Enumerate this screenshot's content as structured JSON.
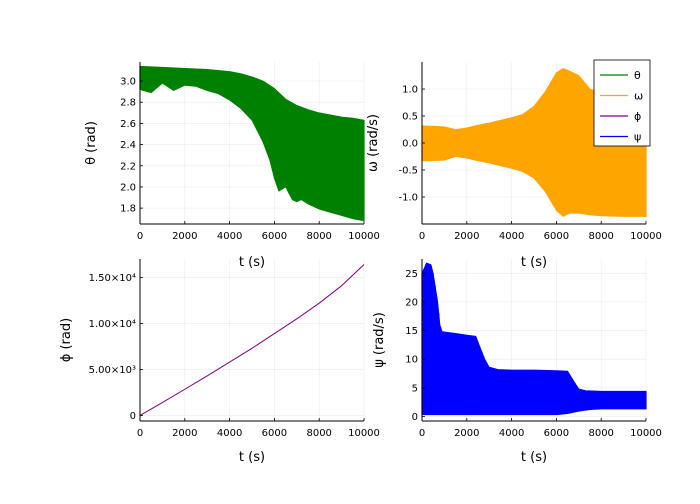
{
  "chart_data": [
    {
      "id": "theta",
      "type": "area",
      "xlabel": "t (s)",
      "ylabel": "θ (rad)",
      "xlim": [
        0,
        10000
      ],
      "ylim": [
        1.65,
        3.18
      ],
      "xticks": [
        0,
        2000,
        4000,
        6000,
        8000,
        10000
      ],
      "xtick_labels": [
        "0",
        "2000",
        "4000",
        "6000",
        "8000",
        "10000"
      ],
      "yticks": [
        1.8,
        2.0,
        2.2,
        2.4,
        2.6,
        2.8,
        3.0
      ],
      "ytick_labels": [
        "1.8",
        "2.0",
        "2.2",
        "2.4",
        "2.6",
        "2.8",
        "3.0"
      ],
      "grid": true,
      "color": "#008000",
      "series": [
        {
          "upper": [
            [
              0,
              3.14
            ],
            [
              1000,
              3.13
            ],
            [
              2000,
              3.12
            ],
            [
              3000,
              3.11
            ],
            [
              4000,
              3.09
            ],
            [
              4500,
              3.07
            ],
            [
              5000,
              3.04
            ],
            [
              5500,
              3.0
            ],
            [
              6000,
              2.93
            ],
            [
              6500,
              2.83
            ],
            [
              7000,
              2.77
            ],
            [
              7500,
              2.73
            ],
            [
              8000,
              2.7
            ],
            [
              8500,
              2.68
            ],
            [
              9000,
              2.66
            ],
            [
              9500,
              2.65
            ],
            [
              10000,
              2.63
            ]
          ],
          "lower": [
            [
              0,
              2.92
            ],
            [
              500,
              2.89
            ],
            [
              1000,
              2.98
            ],
            [
              1500,
              2.91
            ],
            [
              2000,
              2.96
            ],
            [
              2500,
              2.95
            ],
            [
              3000,
              2.91
            ],
            [
              3500,
              2.88
            ],
            [
              4000,
              2.82
            ],
            [
              4500,
              2.74
            ],
            [
              5000,
              2.63
            ],
            [
              5500,
              2.42
            ],
            [
              5800,
              2.25
            ],
            [
              6000,
              2.08
            ],
            [
              6200,
              1.96
            ],
            [
              6500,
              2.0
            ],
            [
              6800,
              1.88
            ],
            [
              7000,
              1.86
            ],
            [
              7200,
              1.88
            ],
            [
              7500,
              1.84
            ],
            [
              8000,
              1.79
            ],
            [
              8500,
              1.76
            ],
            [
              9000,
              1.73
            ],
            [
              9500,
              1.7
            ],
            [
              10000,
              1.68
            ]
          ]
        }
      ]
    },
    {
      "id": "omega",
      "type": "area",
      "xlabel": "t (s)",
      "ylabel": "ω (rad/s)",
      "xlim": [
        0,
        10000
      ],
      "ylim": [
        -1.5,
        1.5
      ],
      "xticks": [
        0,
        2000,
        4000,
        6000,
        8000,
        10000
      ],
      "xtick_labels": [
        "0",
        "2000",
        "4000",
        "6000",
        "8000",
        "10000"
      ],
      "yticks": [
        -1.0,
        -0.5,
        0.0,
        0.5,
        1.0
      ],
      "ytick_labels": [
        "-1.0",
        "-0.5",
        "0.0",
        "0.5",
        "1.0"
      ],
      "grid": true,
      "color": "#FFA500",
      "series": [
        {
          "upper": [
            [
              0,
              0.32
            ],
            [
              1000,
              0.3
            ],
            [
              1500,
              0.25
            ],
            [
              2000,
              0.28
            ],
            [
              2500,
              0.33
            ],
            [
              3000,
              0.37
            ],
            [
              3500,
              0.42
            ],
            [
              4000,
              0.47
            ],
            [
              4500,
              0.53
            ],
            [
              5000,
              0.68
            ],
            [
              5500,
              0.95
            ],
            [
              6000,
              1.3
            ],
            [
              6300,
              1.38
            ],
            [
              6600,
              1.33
            ],
            [
              7000,
              1.25
            ],
            [
              7500,
              1.0
            ],
            [
              8000,
              0.92
            ],
            [
              9000,
              0.89
            ],
            [
              10000,
              0.88
            ]
          ],
          "lower": [
            [
              0,
              -0.33
            ],
            [
              1000,
              -0.32
            ],
            [
              1500,
              -0.25
            ],
            [
              2000,
              -0.28
            ],
            [
              2500,
              -0.33
            ],
            [
              3000,
              -0.37
            ],
            [
              3500,
              -0.42
            ],
            [
              4000,
              -0.47
            ],
            [
              4500,
              -0.53
            ],
            [
              5000,
              -0.65
            ],
            [
              5500,
              -0.9
            ],
            [
              6000,
              -1.25
            ],
            [
              6300,
              -1.36
            ],
            [
              6600,
              -1.3
            ],
            [
              7000,
              -1.3
            ],
            [
              7500,
              -1.33
            ],
            [
              8000,
              -1.35
            ],
            [
              9000,
              -1.36
            ],
            [
              10000,
              -1.36
            ]
          ]
        }
      ]
    },
    {
      "id": "phi",
      "type": "line",
      "xlabel": "t (s)",
      "ylabel": "ϕ (rad)",
      "xlim": [
        0,
        10000
      ],
      "ylim": [
        -600,
        17000
      ],
      "xticks": [
        0,
        2000,
        4000,
        6000,
        8000,
        10000
      ],
      "xtick_labels": [
        "0",
        "2000",
        "4000",
        "6000",
        "8000",
        "10000"
      ],
      "yticks": [
        0,
        5000,
        10000,
        15000
      ],
      "ytick_labels": [
        "0",
        "5.00×10³",
        "1.00×10⁴",
        "1.50×10⁴"
      ],
      "grid": true,
      "color": "#800080",
      "series": [
        {
          "points": [
            [
              0,
              0
            ],
            [
              1000,
              1400
            ],
            [
              2000,
              2850
            ],
            [
              3000,
              4300
            ],
            [
              4000,
              5800
            ],
            [
              5000,
              7300
            ],
            [
              6000,
              8900
            ],
            [
              7000,
              10500
            ],
            [
              8000,
              12200
            ],
            [
              9000,
              14100
            ],
            [
              10000,
              16400
            ]
          ]
        }
      ]
    },
    {
      "id": "psi",
      "type": "area",
      "xlabel": "t (s)",
      "ylabel": "ψ (rad/s)",
      "xlim": [
        0,
        10000
      ],
      "ylim": [
        -0.8,
        27.5
      ],
      "xticks": [
        0,
        2000,
        4000,
        6000,
        8000,
        10000
      ],
      "xtick_labels": [
        "0",
        "2000",
        "4000",
        "6000",
        "8000",
        "10000"
      ],
      "yticks": [
        0,
        5,
        10,
        15,
        20,
        25
      ],
      "ytick_labels": [
        "0",
        "5",
        "10",
        "15",
        "20",
        "25"
      ],
      "grid": true,
      "color": "#0000FF",
      "series": [
        {
          "upper": [
            [
              0,
              25
            ],
            [
              200,
              26.8
            ],
            [
              400,
              26.5
            ],
            [
              500,
              25
            ],
            [
              700,
              20
            ],
            [
              800,
              16
            ],
            [
              900,
              14.8
            ],
            [
              1500,
              14.5
            ],
            [
              2000,
              14.2
            ],
            [
              2400,
              14.0
            ],
            [
              2600,
              12
            ],
            [
              2800,
              10
            ],
            [
              3000,
              8.6
            ],
            [
              3400,
              8.2
            ],
            [
              4000,
              8.1
            ],
            [
              5000,
              8.1
            ],
            [
              6000,
              8.0
            ],
            [
              6500,
              7.9
            ],
            [
              6800,
              6.0
            ],
            [
              7000,
              4.8
            ],
            [
              7300,
              4.5
            ],
            [
              8000,
              4.4
            ],
            [
              9000,
              4.4
            ],
            [
              10000,
              4.4
            ]
          ],
          "lower": [
            [
              0,
              0.3
            ],
            [
              500,
              0.3
            ],
            [
              1000,
              0.3
            ],
            [
              2000,
              0.3
            ],
            [
              3000,
              0.3
            ],
            [
              4000,
              0.3
            ],
            [
              5000,
              0.3
            ],
            [
              6000,
              0.3
            ],
            [
              6500,
              0.5
            ],
            [
              7000,
              0.9
            ],
            [
              7500,
              1.2
            ],
            [
              8000,
              1.3
            ],
            [
              9000,
              1.3
            ],
            [
              10000,
              1.3
            ]
          ]
        }
      ]
    }
  ],
  "legend": {
    "placement": "top-right",
    "entries": [
      {
        "label": "θ",
        "color": "#008000"
      },
      {
        "label": "ω",
        "color": "#FFA500"
      },
      {
        "label": "ϕ",
        "color": "#800080"
      },
      {
        "label": "ψ",
        "color": "#0000FF"
      }
    ]
  }
}
